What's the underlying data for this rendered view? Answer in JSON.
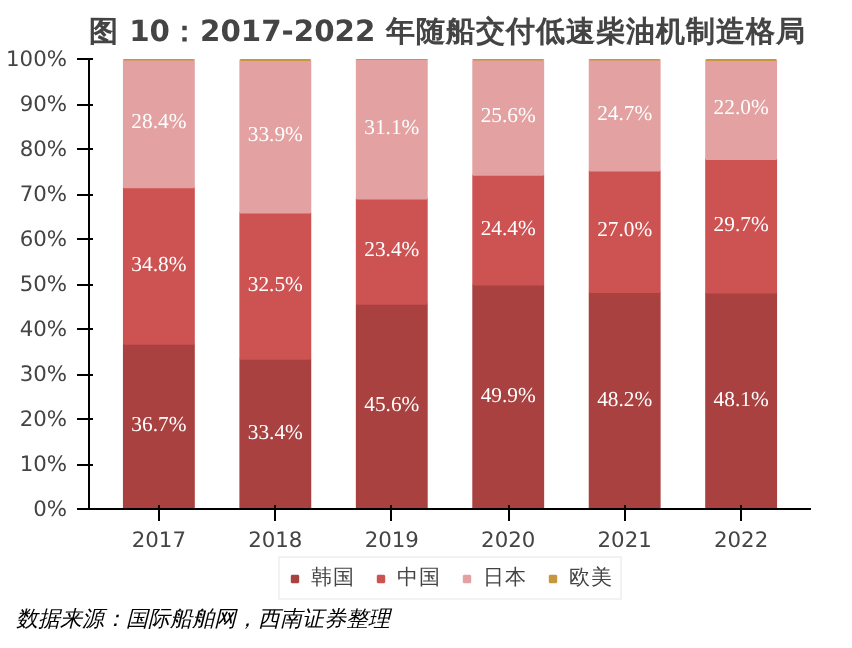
{
  "chart_data": {
    "type": "bar",
    "stacked": true,
    "title": "图 10：2017-2022 年随船交付低速柴油机制造格局",
    "categories": [
      "2017",
      "2018",
      "2019",
      "2020",
      "2021",
      "2022"
    ],
    "series": [
      {
        "name": "韩国",
        "color": "#a8413f",
        "values": [
          36.7,
          33.4,
          45.6,
          49.9,
          48.2,
          48.1
        ],
        "value_labels": [
          "36.7%",
          "33.4%",
          "45.6%",
          "49.9%",
          "48.2%",
          "48.1%"
        ]
      },
      {
        "name": "中国",
        "color": "#cd5353",
        "values": [
          34.8,
          32.5,
          23.4,
          24.4,
          27.0,
          29.7
        ],
        "value_labels": [
          "34.8%",
          "32.5%",
          "23.4%",
          "24.4%",
          "27.0%",
          "29.7%"
        ]
      },
      {
        "name": "日本",
        "color": "#e3a1a1",
        "values": [
          28.4,
          33.9,
          31.1,
          25.6,
          24.7,
          22.0
        ],
        "value_labels": [
          "28.4%",
          "33.9%",
          "31.1%",
          "25.6%",
          "24.7%",
          "22.0%"
        ]
      },
      {
        "name": "欧美",
        "color": "#c8963e",
        "values": [
          0,
          0,
          0,
          0,
          0,
          0
        ]
      }
    ],
    "ylim": [
      0,
      100
    ],
    "yticks": [
      {
        "value": 0,
        "label": "0%"
      },
      {
        "value": 10,
        "label": "10%"
      },
      {
        "value": 20,
        "label": "20%"
      },
      {
        "value": 30,
        "label": "30%"
      },
      {
        "value": 40,
        "label": "40%"
      },
      {
        "value": 50,
        "label": "50%"
      },
      {
        "value": 60,
        "label": "60%"
      },
      {
        "value": 70,
        "label": "70%"
      },
      {
        "value": 80,
        "label": "80%"
      },
      {
        "value": 90,
        "label": "90%"
      },
      {
        "value": 100,
        "label": "100%"
      }
    ],
    "legend": "bottom",
    "grid": false,
    "annotations": [
      "数据来源：国际船舶网，西南证券整理"
    ]
  }
}
